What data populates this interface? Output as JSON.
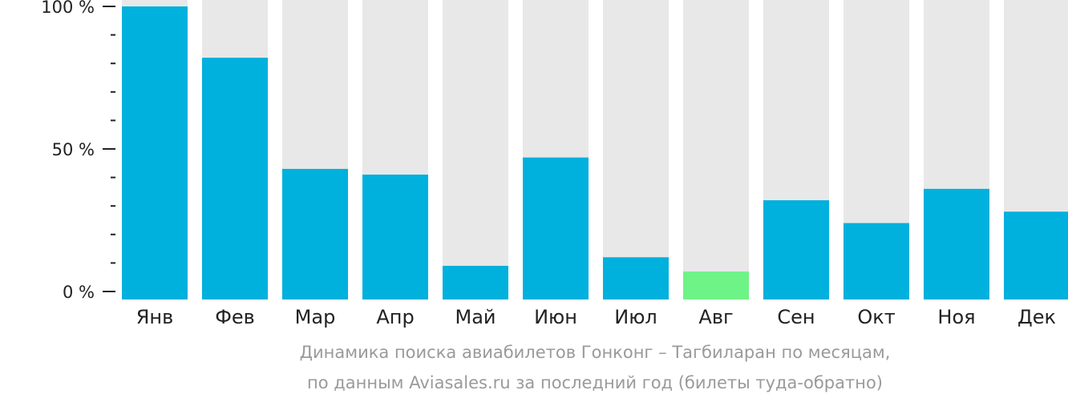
{
  "chart_data": {
    "type": "bar",
    "categories": [
      "Янв",
      "Фев",
      "Мар",
      "Апр",
      "Май",
      "Июн",
      "Июл",
      "Авг",
      "Сен",
      "Окт",
      "Ноя",
      "Дек"
    ],
    "values": [
      100,
      82,
      43,
      41,
      9,
      47,
      12,
      7,
      32,
      24,
      36,
      28
    ],
    "highlight_index": 7,
    "ylim": [
      0,
      100
    ],
    "y_ticks": [
      {
        "value": 0,
        "label": "0 %"
      },
      {
        "value": 50,
        "label": "50 %"
      },
      {
        "value": 100,
        "label": "100 %"
      }
    ],
    "minor_tick_step": 10,
    "title": "Динамика поиска авиабилетов Гонконг – Тагбиларан по месяцам,",
    "subtitle": "по данным Aviasales.ru за последний год (билеты туда-обратно)",
    "xlabel": "",
    "ylabel": "",
    "grid": false,
    "legend": "none",
    "colors": {
      "bar": "#00b0dd",
      "highlight": "#6ef387",
      "track": "#e8e8e8",
      "axis": "#222222",
      "caption": "#9a9a9a"
    }
  }
}
